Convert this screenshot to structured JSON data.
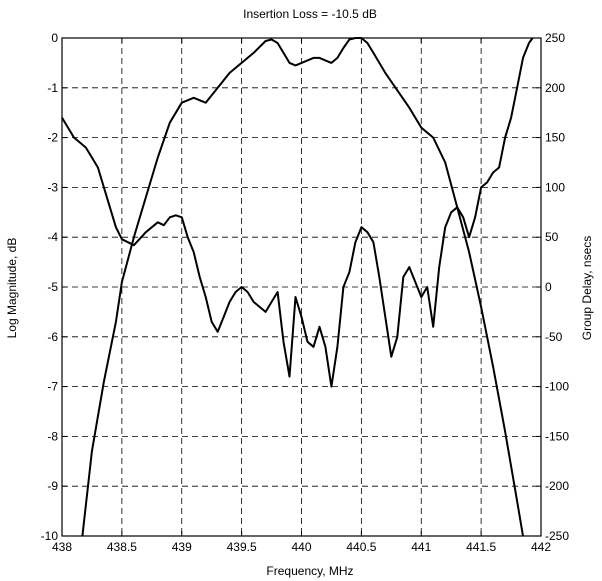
{
  "chart_data": {
    "type": "line",
    "title": "Insertion Loss =  -10.5 dB",
    "xlabel": "Frequency, MHz",
    "ylabel_left": "Log Magnitude, dB",
    "ylabel_right": "Group Delay, nsecs",
    "xlim": [
      438,
      442
    ],
    "ylim_left": [
      -10,
      0
    ],
    "ylim_right": [
      -250,
      250
    ],
    "grid": true,
    "grid_style": "dashed",
    "line_color": "#000000",
    "x_ticks": [
      "438",
      "438.5",
      "439",
      "439.5",
      "440",
      "440.5",
      "441",
      "441.5",
      "442"
    ],
    "y_left_ticks": [
      "0",
      "-1",
      "-2",
      "-3",
      "-4",
      "-5",
      "-6",
      "-7",
      "-8",
      "-9",
      "-10"
    ],
    "y_right_ticks": [
      "250",
      "200",
      "150",
      "100",
      "50",
      "0",
      "-50",
      "-100",
      "-150",
      "-200",
      "-250"
    ],
    "series": [
      {
        "axis": "left",
        "x": [
          438.17,
          438.25,
          438.35,
          438.45,
          438.5,
          438.6,
          438.7,
          438.8,
          438.9,
          439.0,
          439.1,
          439.2,
          439.3,
          439.4,
          439.5,
          439.6,
          439.7,
          439.75,
          439.8,
          439.85,
          439.9,
          439.95,
          440.0,
          440.05,
          440.1,
          440.15,
          440.2,
          440.25,
          440.3,
          440.35,
          440.4,
          440.45,
          440.5,
          440.55,
          440.6,
          440.7,
          440.8,
          440.9,
          441.0,
          441.1,
          441.2,
          441.3,
          441.4,
          441.5,
          441.6,
          441.7,
          441.8,
          441.85
        ],
        "values": [
          -10.0,
          -8.3,
          -6.9,
          -5.7,
          -4.9,
          -4.0,
          -3.2,
          -2.4,
          -1.7,
          -1.3,
          -1.2,
          -1.3,
          -1.0,
          -0.7,
          -0.5,
          -0.3,
          -0.06,
          -0.03,
          -0.1,
          -0.3,
          -0.5,
          -0.55,
          -0.5,
          -0.45,
          -0.4,
          -0.4,
          -0.45,
          -0.5,
          -0.4,
          -0.2,
          -0.03,
          0.0,
          0.0,
          -0.1,
          -0.3,
          -0.7,
          -1.05,
          -1.4,
          -1.8,
          -2.0,
          -2.5,
          -3.4,
          -4.3,
          -5.4,
          -6.6,
          -7.9,
          -9.3,
          -10.0
        ]
      },
      {
        "axis": "right",
        "x": [
          438.0,
          438.05,
          438.1,
          438.15,
          438.2,
          438.25,
          438.3,
          438.35,
          438.4,
          438.45,
          438.5,
          438.55,
          438.6,
          438.7,
          438.8,
          438.85,
          438.9,
          438.95,
          439.0,
          439.05,
          439.1,
          439.15,
          439.2,
          439.25,
          439.3,
          439.35,
          439.4,
          439.45,
          439.5,
          439.55,
          439.6,
          439.65,
          439.7,
          439.75,
          439.8,
          439.85,
          439.9,
          439.95,
          440.0,
          440.05,
          440.1,
          440.15,
          440.2,
          440.25,
          440.3,
          440.35,
          440.4,
          440.45,
          440.5,
          440.55,
          440.6,
          440.65,
          440.7,
          440.75,
          440.8,
          440.85,
          440.9,
          440.95,
          441.0,
          441.05,
          441.1,
          441.15,
          441.2,
          441.25,
          441.3,
          441.35,
          441.4,
          441.45,
          441.5,
          441.55,
          441.6,
          441.65,
          441.7,
          441.75,
          441.8,
          441.85,
          441.9,
          441.93
        ],
        "values": [
          170,
          160,
          150,
          145,
          140,
          130,
          120,
          100,
          80,
          60,
          48,
          45,
          42,
          55,
          65,
          62,
          70,
          72,
          70,
          50,
          35,
          10,
          -10,
          -35,
          -45,
          -30,
          -15,
          -5,
          0,
          -5,
          -15,
          -20,
          -25,
          -15,
          -5,
          -55,
          -90,
          -10,
          -30,
          -55,
          -60,
          -40,
          -60,
          -100,
          -60,
          0,
          15,
          45,
          60,
          55,
          45,
          10,
          -30,
          -70,
          -50,
          10,
          20,
          5,
          -10,
          0,
          -40,
          20,
          60,
          75,
          80,
          70,
          50,
          70,
          100,
          105,
          115,
          120,
          150,
          170,
          200,
          230,
          245,
          250
        ]
      }
    ]
  }
}
